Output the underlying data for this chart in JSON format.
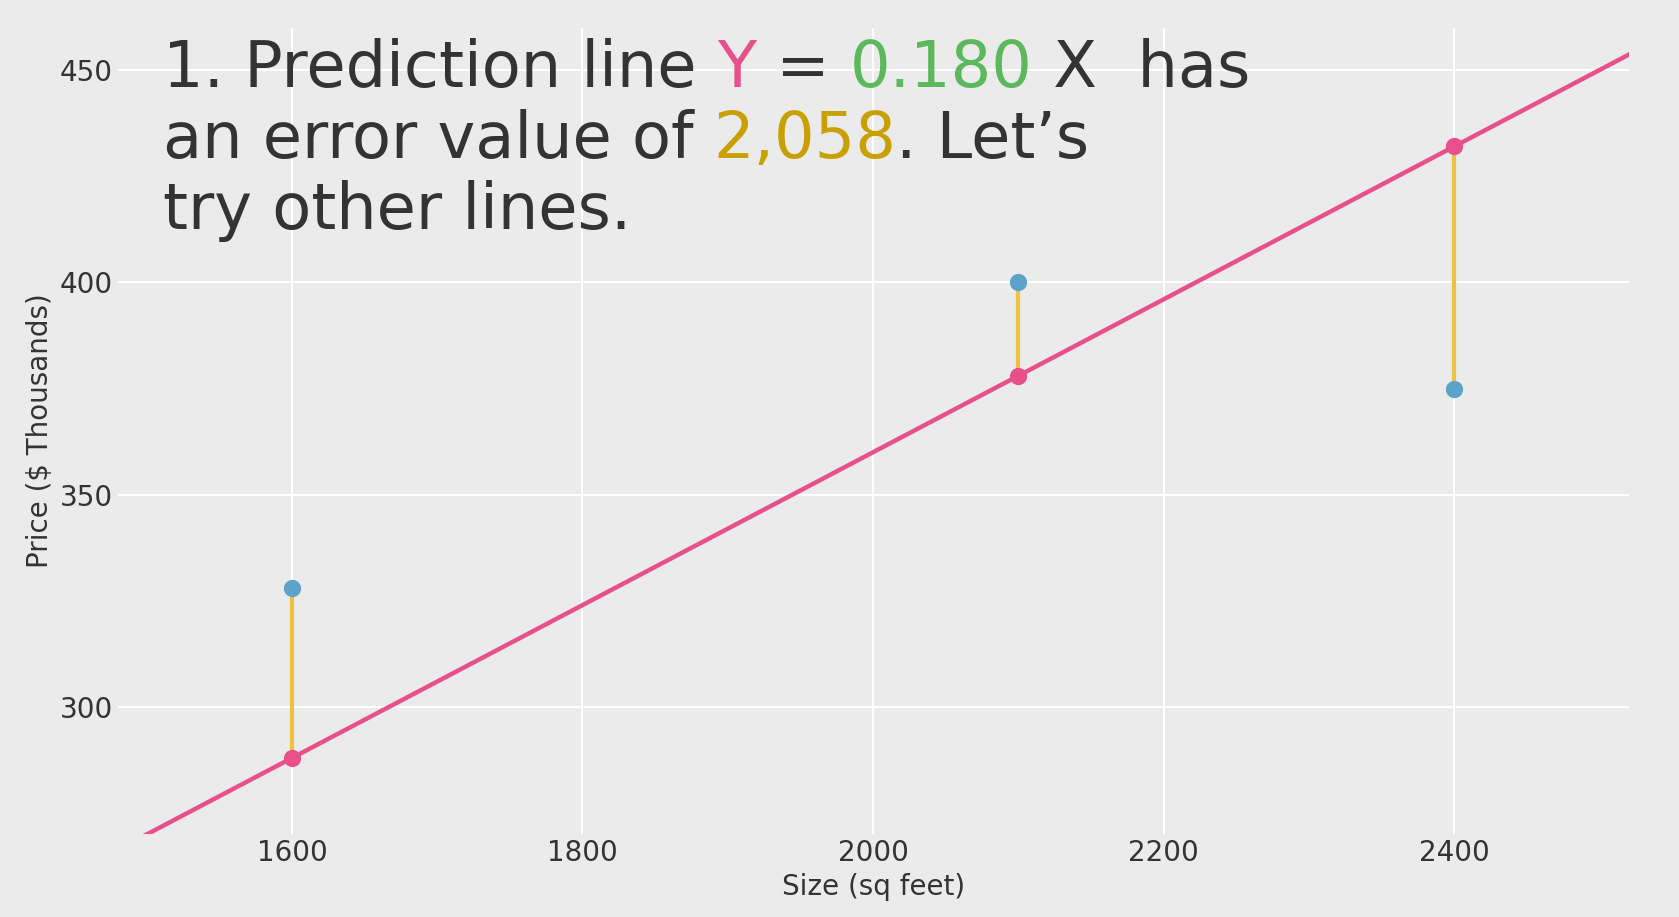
{
  "weight": 0.18,
  "data_x": [
    1600,
    2100,
    2400
  ],
  "data_y": [
    328,
    400,
    375
  ],
  "xlabel": "Size (sq feet)",
  "ylabel": "Price ($ Thousands)",
  "xlim": [
    1480,
    2520
  ],
  "ylim": [
    270,
    460
  ],
  "yticks": [
    300,
    350,
    400,
    450
  ],
  "xticks": [
    1600,
    1800,
    2000,
    2200,
    2400
  ],
  "line_color": "#e8508a",
  "dot_color": "#5ba3c9",
  "error_line_color": "#f0c040",
  "bg_color": "#ebebeb",
  "grid_color": "#ffffff",
  "text_color": "#333333",
  "title_fontsize": 46,
  "axis_fontsize": 20,
  "tick_fontsize": 20,
  "dot_size": 130,
  "line_width": 3.2,
  "error_line_width": 3.0,
  "line1_parts": [
    [
      "1. Prediction line ",
      "#333333"
    ],
    [
      "Y",
      "#e8508a"
    ],
    [
      " = ",
      "#333333"
    ],
    [
      "0.180",
      "#5cb85c"
    ],
    [
      " X  has",
      "#333333"
    ]
  ],
  "line2_parts": [
    [
      "an error value of ",
      "#333333"
    ],
    [
      "2,058",
      "#c8a000"
    ],
    [
      ". Let’s",
      "#333333"
    ]
  ],
  "line3_parts": [
    [
      "try other lines.",
      "#333333"
    ]
  ]
}
